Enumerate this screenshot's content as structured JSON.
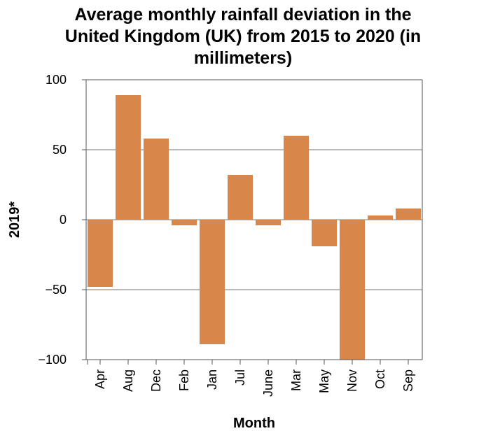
{
  "chart_data": {
    "type": "bar",
    "title_lines": [
      "Average monthly rainfall deviation in the",
      "United Kingdom (UK) from 2015 to 2020 (in",
      "millimeters)"
    ],
    "xlabel": "Month",
    "ylabel": "2019*",
    "categories": [
      "Apr",
      "Aug",
      "Dec",
      "Feb",
      "Jan",
      "Jul",
      "June",
      "Mar",
      "May",
      "Nov",
      "Oct",
      "Sep"
    ],
    "values": [
      -48,
      89,
      58,
      -4,
      -89,
      32,
      -4,
      60,
      -19,
      -100,
      3,
      8
    ],
    "ylim": [
      -100,
      100
    ],
    "yticks": [
      -100,
      -50,
      0,
      50,
      100
    ],
    "ytick_labels": [
      "−100",
      "−50",
      "0",
      "50",
      "100"
    ],
    "grid": true,
    "bar_color": "#d9864a"
  }
}
